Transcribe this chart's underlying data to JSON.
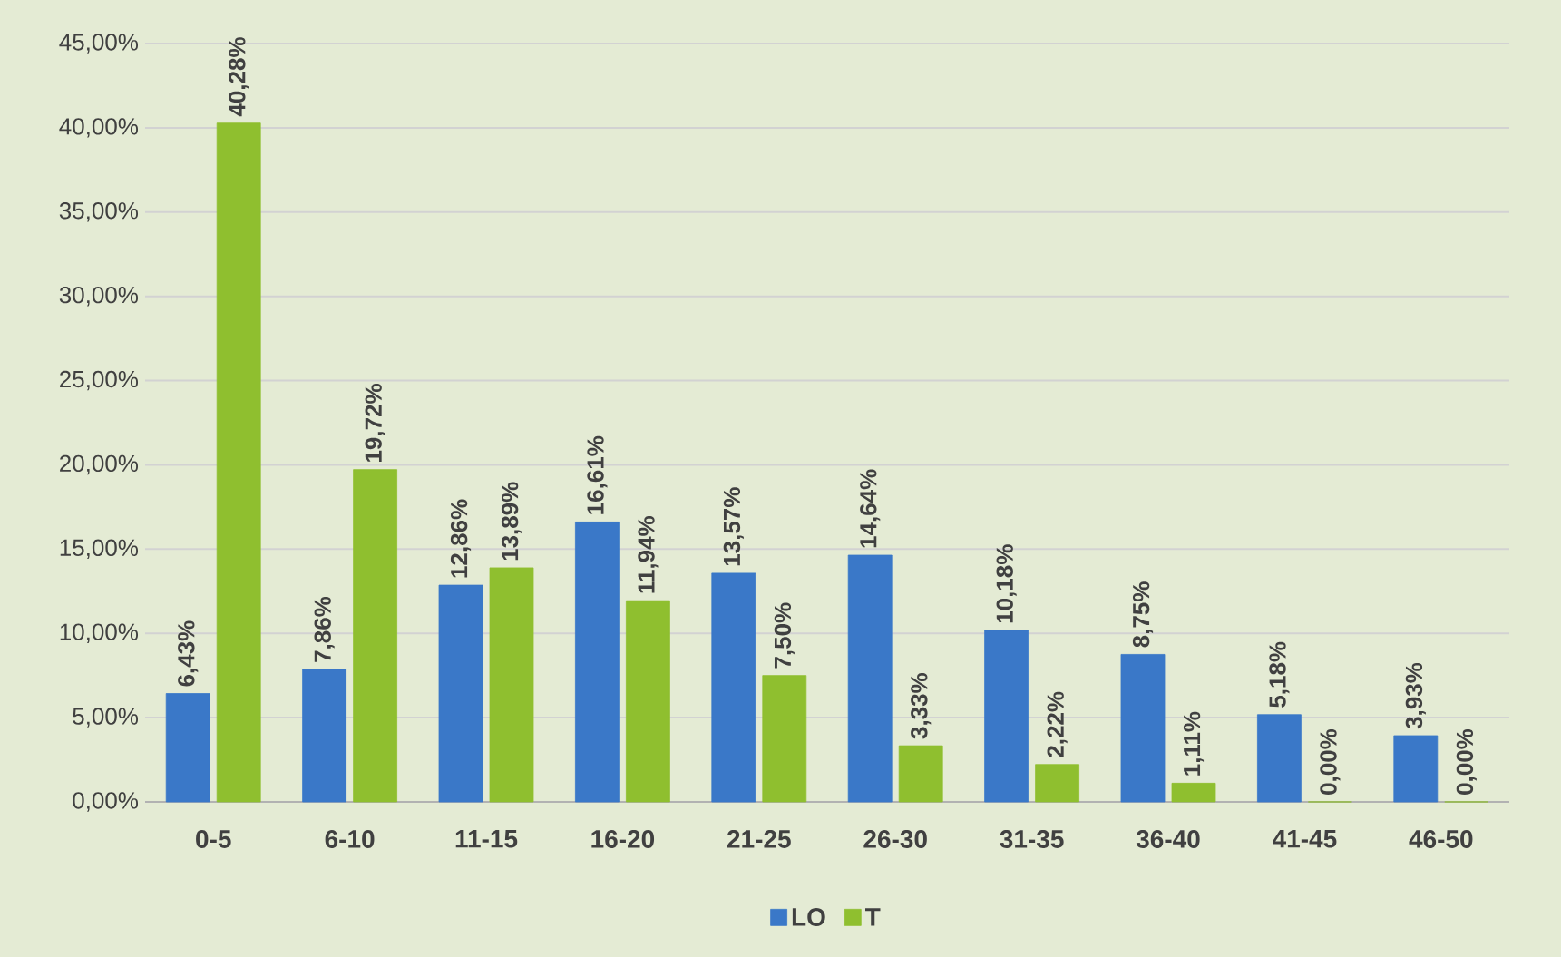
{
  "chart_data": {
    "type": "bar",
    "categories": [
      "0-5",
      "6-10",
      "11-15",
      "16-20",
      "21-25",
      "26-30",
      "31-35",
      "36-40",
      "41-45",
      "46-50"
    ],
    "series": [
      {
        "name": "LO",
        "color": "#3a78c8",
        "values": [
          6.43,
          7.86,
          12.86,
          16.61,
          13.57,
          14.64,
          10.18,
          8.75,
          5.18,
          3.93
        ],
        "value_labels": [
          "6,43%",
          "7,86%",
          "12,86%",
          "16,61%",
          "13,57%",
          "14,64%",
          "10,18%",
          "8,75%",
          "5,18%",
          "3,93%"
        ]
      },
      {
        "name": "T",
        "color": "#8fbf2f",
        "values": [
          40.28,
          19.72,
          13.89,
          11.94,
          7.5,
          3.33,
          2.22,
          1.11,
          0,
          0
        ],
        "value_labels": [
          "40,28%",
          "19,72%",
          "13,89%",
          "11,94%",
          "7,50%",
          "3,33%",
          "2,22%",
          "1,11%",
          "0,00%",
          "0,00%"
        ]
      }
    ],
    "ylim": [
      0,
      45
    ],
    "yticks": [
      {
        "value": 0,
        "label": "0,00%"
      },
      {
        "value": 5,
        "label": "5,00%"
      },
      {
        "value": 10,
        "label": "10,00%"
      },
      {
        "value": 15,
        "label": "15,00%"
      },
      {
        "value": 20,
        "label": "20,00%"
      },
      {
        "value": 25,
        "label": "25,00%"
      },
      {
        "value": 30,
        "label": "30,00%"
      },
      {
        "value": 35,
        "label": "35,00%"
      },
      {
        "value": 40,
        "label": "40,00%"
      },
      {
        "value": 45,
        "label": "45,00%"
      }
    ],
    "grid": "y",
    "legend": "bottom"
  }
}
